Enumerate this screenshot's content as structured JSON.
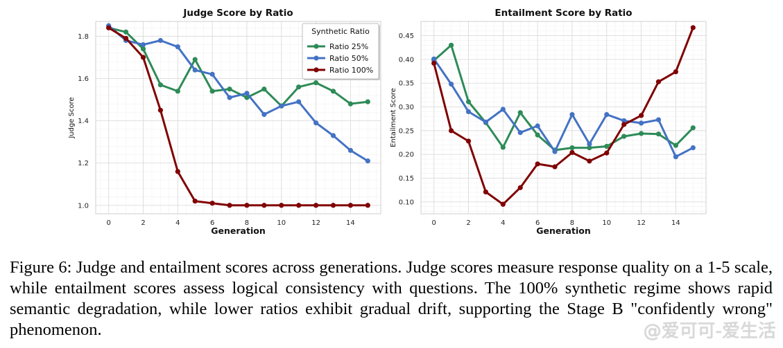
{
  "chart_data": [
    {
      "type": "line",
      "title": "Judge Score by Ratio",
      "xlabel": "Generation",
      "ylabel": "Judge Score",
      "x": [
        0,
        1,
        2,
        3,
        4,
        5,
        6,
        7,
        8,
        9,
        10,
        11,
        12,
        13,
        14,
        15
      ],
      "xlim": [
        -0.75,
        15.75
      ],
      "ylim": [
        0.96,
        1.87
      ],
      "xticks": [
        0,
        2,
        4,
        6,
        8,
        10,
        12,
        14
      ],
      "yticks": [
        1.0,
        1.2,
        1.4,
        1.6,
        1.8
      ],
      "ytick_labels": [
        "1.0",
        "1.2",
        "1.4",
        "1.6",
        "1.8"
      ],
      "grid": true,
      "legend": {
        "title": "Synthetic Ratio",
        "placement": "top-right"
      },
      "series": [
        {
          "name": "Ratio 25%",
          "color": "#2e8b57",
          "values": [
            1.84,
            1.82,
            1.74,
            1.57,
            1.54,
            1.69,
            1.54,
            1.55,
            1.51,
            1.55,
            1.47,
            1.56,
            1.58,
            1.54,
            1.48,
            1.49
          ]
        },
        {
          "name": "Ratio 50%",
          "color": "#4472c4",
          "values": [
            1.85,
            1.78,
            1.76,
            1.78,
            1.75,
            1.64,
            1.62,
            1.51,
            1.53,
            1.43,
            1.47,
            1.49,
            1.39,
            1.33,
            1.26,
            1.21
          ]
        },
        {
          "name": "Ratio 100%",
          "color": "#800000",
          "values": [
            1.84,
            1.79,
            1.7,
            1.45,
            1.16,
            1.02,
            1.01,
            1.0,
            1.0,
            1.0,
            1.0,
            1.0,
            1.0,
            1.0,
            1.0,
            1.0
          ]
        }
      ]
    },
    {
      "type": "line",
      "title": "Entailment Score by Ratio",
      "xlabel": "Generation",
      "ylabel": "Entailment Score",
      "x": [
        0,
        1,
        2,
        3,
        4,
        5,
        6,
        7,
        8,
        9,
        10,
        11,
        12,
        13,
        14,
        15
      ],
      "xlim": [
        -0.75,
        15.75
      ],
      "ylim": [
        0.075,
        0.48
      ],
      "xticks": [
        0,
        2,
        4,
        6,
        8,
        10,
        12,
        14
      ],
      "yticks": [
        0.1,
        0.15,
        0.2,
        0.25,
        0.3,
        0.35,
        0.4,
        0.45
      ],
      "ytick_labels": [
        "0.10",
        "0.15",
        "0.20",
        "0.25",
        "0.30",
        "0.35",
        "0.40",
        "0.45"
      ],
      "grid": true,
      "series": [
        {
          "name": "Ratio 25%",
          "color": "#2e8b57",
          "values": [
            0.398,
            0.43,
            0.311,
            0.267,
            0.215,
            0.288,
            0.241,
            0.209,
            0.214,
            0.214,
            0.217,
            0.238,
            0.244,
            0.243,
            0.219,
            0.256
          ]
        },
        {
          "name": "Ratio 50%",
          "color": "#4472c4",
          "values": [
            0.401,
            0.348,
            0.29,
            0.268,
            0.295,
            0.246,
            0.26,
            0.206,
            0.284,
            0.222,
            0.284,
            0.271,
            0.266,
            0.273,
            0.195,
            0.214
          ]
        },
        {
          "name": "Ratio 100%",
          "color": "#800000",
          "values": [
            0.392,
            0.25,
            0.228,
            0.121,
            0.095,
            0.13,
            0.18,
            0.174,
            0.204,
            0.186,
            0.203,
            0.263,
            0.282,
            0.353,
            0.374,
            0.467
          ]
        }
      ]
    }
  ],
  "caption": "Figure 6: Judge and entailment scores across generations. Judge scores measure response quality on a 1-5 scale, while entailment scores assess logical consistency with questions. The 100% synthetic regime shows rapid semantic degradation, while lower ratios exhibit gradual drift, supporting the Stage B \"confidently wrong\" phenomenon.",
  "watermark": "@爱可可-爱生活"
}
